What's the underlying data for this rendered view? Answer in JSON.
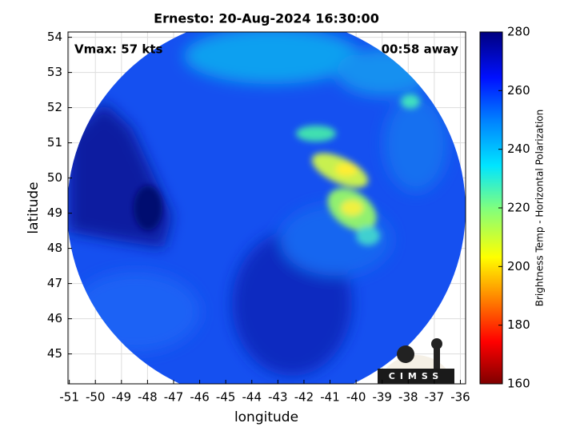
{
  "chart_data": {
    "type": "image",
    "title": "Ernesto: 20-Aug-2024 16:30:00",
    "annotations": [
      "Vmax: 57 kts",
      "00:58 away"
    ],
    "xlabel": "longitude",
    "ylabel": "latitude",
    "xlim": [
      -51.05,
      -35.8
    ],
    "xticks": [
      -51,
      -50,
      -49,
      -48,
      -47,
      -46,
      -45,
      -44,
      -43,
      -42,
      -41,
      -40,
      -39,
      -38,
      -37,
      -36
    ],
    "ylim": [
      44.15,
      54.15
    ],
    "yticks": [
      45,
      46,
      47,
      48,
      49,
      50,
      51,
      52,
      53,
      54
    ],
    "grid": true,
    "colorbar": {
      "label": "Brightness Temp - Horizontal Polarization",
      "lim": [
        160,
        280
      ],
      "ticks": [
        160,
        180,
        200,
        220,
        240,
        260,
        280
      ]
    },
    "logo": "CIMSS"
  }
}
